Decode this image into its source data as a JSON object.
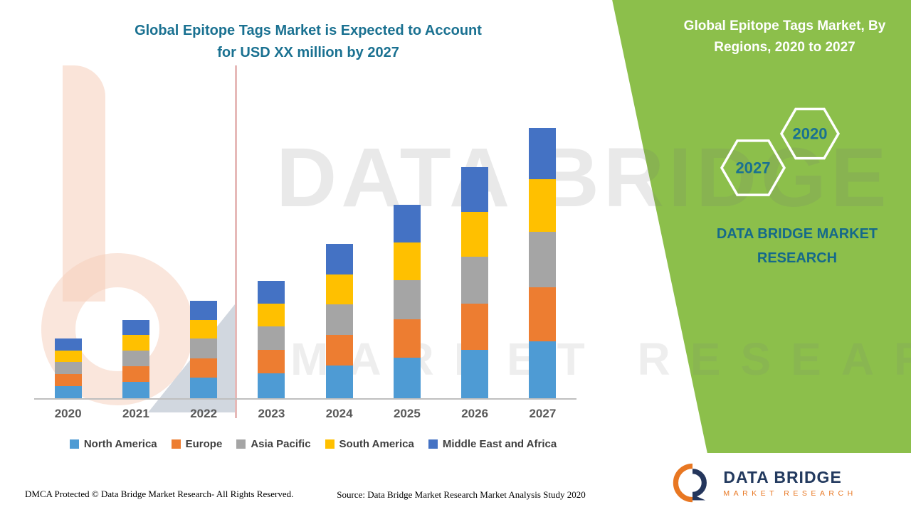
{
  "title": {
    "line1": "Global Epitope Tags Market is Expected to Account",
    "line2": "for USD XX million by 2027"
  },
  "watermark": {
    "line1": "DATA BRIDGE",
    "line2": "MARKET RESEARCH"
  },
  "side_panel": {
    "bg_color": "#8CBF4B",
    "title_line1": "Global Epitope Tags Market, By",
    "title_line2": "Regions, 2020 to 2027",
    "hexagon_labels": [
      "2020",
      "2027"
    ],
    "brand_line1": "DATA BRIDGE MARKET",
    "brand_line2": "RESEARCH",
    "accent_text_color": "#15698A",
    "title_text_color": "#FFFFFF"
  },
  "chart_data": {
    "type": "bar",
    "stacked": true,
    "title": "Global Epitope Tags Market is Expected to Account for USD XX million by 2027",
    "xlabel": "",
    "ylabel": "",
    "y_axis_visible": false,
    "legend_position": "bottom",
    "categories": [
      "2020",
      "2021",
      "2022",
      "2023",
      "2024",
      "2025",
      "2026",
      "2027"
    ],
    "series": [
      {
        "name": "North America",
        "color": "#4E9BD4",
        "values": [
          4.6,
          6.1,
          7.6,
          9.2,
          12.0,
          15.0,
          18.0,
          21.0
        ]
      },
      {
        "name": "Europe",
        "color": "#ED7D31",
        "values": [
          4.4,
          5.8,
          7.2,
          8.7,
          11.4,
          14.3,
          17.1,
          20.0
        ]
      },
      {
        "name": "Asia Pacific",
        "color": "#A5A5A5",
        "values": [
          4.4,
          5.8,
          7.2,
          8.7,
          11.4,
          14.3,
          17.3,
          20.5
        ]
      },
      {
        "name": "South America",
        "color": "#FFC000",
        "values": [
          4.3,
          5.7,
          7.0,
          8.5,
          11.1,
          14.0,
          16.6,
          19.5
        ]
      },
      {
        "name": "Middle East and Africa",
        "color": "#4472C4",
        "values": [
          4.3,
          5.6,
          7.0,
          8.4,
          11.1,
          13.9,
          16.5,
          19.0
        ]
      }
    ]
  },
  "accent": {
    "title_color": "#1A7191",
    "axis_label_color": "#595959",
    "legend_text_color": "#3F3F3F"
  },
  "logo": {
    "name": "DATA BRIDGE",
    "sub": "MARKET RESEARCH"
  },
  "footer": {
    "left": "DMCA Protected © Data Bridge Market Research- All Rights Reserved.",
    "source": "Source: Data Bridge Market Research Market Analysis Study 2020"
  }
}
